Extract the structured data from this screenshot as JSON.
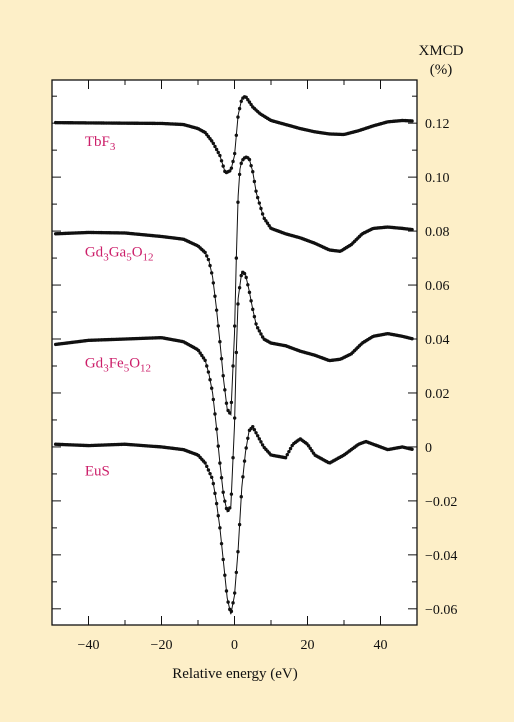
{
  "chart_data": {
    "type": "line",
    "title": "",
    "xlabel": "Relative energy (eV)",
    "ylabel": "XMCD",
    "ylabel_unit": "(%)",
    "xlim": [
      -50,
      50
    ],
    "ylim": [
      -0.066,
      0.136
    ],
    "x_ticks": [
      -40,
      -20,
      0,
      20,
      40
    ],
    "x_tick_labels": [
      "−40",
      "−20",
      "0",
      "20",
      "40"
    ],
    "y_ticks": [
      0.12,
      0.1,
      0.08,
      0.06,
      0.04,
      0.02,
      0,
      -0.02,
      -0.04,
      -0.06
    ],
    "y_tick_labels": [
      "0.12",
      "0.10",
      "0.08",
      "0.06",
      "0.04",
      "0.02",
      "0",
      "−0.02",
      "−0.04",
      "−0.06"
    ],
    "y_axis_side": "right",
    "grid": false,
    "series": [
      {
        "label_parts": [
          [
            "TbF",
            ""
          ],
          [
            "3",
            "sub"
          ]
        ],
        "label_x": -41,
        "label_y": 0.1115,
        "x": [
          -49,
          -40,
          -30,
          -20,
          -14,
          -10,
          -8,
          -6,
          -4,
          -2.5,
          -1,
          0,
          1,
          2,
          3,
          4,
          5,
          7,
          10,
          14,
          18,
          22,
          26,
          30,
          34,
          38,
          42,
          46,
          49
        ],
        "y": [
          0.1202,
          0.1201,
          0.12,
          0.1199,
          0.1195,
          0.118,
          0.1165,
          0.113,
          0.108,
          0.1015,
          0.1025,
          0.108,
          0.123,
          0.129,
          0.13,
          0.128,
          0.126,
          0.1235,
          0.121,
          0.1195,
          0.118,
          0.1168,
          0.116,
          0.1158,
          0.1172,
          0.119,
          0.1205,
          0.121,
          0.1208
        ]
      },
      {
        "label_parts": [
          [
            "Gd",
            ""
          ],
          [
            "3",
            "sub"
          ],
          [
            "Ga",
            ""
          ],
          [
            "5",
            "sub"
          ],
          [
            "O",
            ""
          ],
          [
            "12",
            "sub"
          ]
        ],
        "label_x": -41,
        "label_y": 0.0705,
        "x": [
          -49,
          -40,
          -30,
          -20,
          -14,
          -10,
          -8,
          -7,
          -6,
          -5,
          -4,
          -3,
          -2,
          -1,
          0,
          0.5,
          1,
          1.5,
          2,
          3,
          4,
          5,
          6,
          8,
          10,
          14,
          18,
          22,
          26,
          29,
          32,
          35,
          38,
          42,
          46,
          49
        ],
        "y": [
          0.079,
          0.0795,
          0.0793,
          0.078,
          0.077,
          0.0745,
          0.072,
          0.069,
          0.063,
          0.052,
          0.039,
          0.025,
          0.014,
          0.012,
          0.042,
          0.07,
          0.093,
          0.103,
          0.106,
          0.1075,
          0.107,
          0.102,
          0.094,
          0.085,
          0.081,
          0.079,
          0.0775,
          0.0755,
          0.073,
          0.0725,
          0.075,
          0.079,
          0.081,
          0.0815,
          0.081,
          0.0805
        ]
      },
      {
        "label_parts": [
          [
            "Gd",
            ""
          ],
          [
            "3",
            "sub"
          ],
          [
            "Fe",
            ""
          ],
          [
            "5",
            "sub"
          ],
          [
            "O",
            ""
          ],
          [
            "12",
            "sub"
          ]
        ],
        "label_x": -41,
        "label_y": 0.0295,
        "x": [
          -49,
          -40,
          -30,
          -20,
          -14,
          -10,
          -8,
          -7,
          -6,
          -5,
          -4,
          -3,
          -2,
          -1,
          0,
          0.5,
          1,
          2,
          3,
          4,
          5,
          6,
          8,
          10,
          14,
          18,
          22,
          26,
          29,
          32,
          35,
          38,
          42,
          46,
          49
        ],
        "y": [
          0.038,
          0.0395,
          0.04,
          0.0405,
          0.039,
          0.036,
          0.032,
          0.027,
          0.02,
          0.008,
          -0.006,
          -0.018,
          -0.024,
          -0.022,
          0.008,
          0.035,
          0.055,
          0.065,
          0.064,
          0.058,
          0.051,
          0.045,
          0.04,
          0.0385,
          0.0375,
          0.0355,
          0.034,
          0.032,
          0.0325,
          0.0345,
          0.0385,
          0.041,
          0.042,
          0.041,
          0.04
        ]
      },
      {
        "label_parts": [
          [
            "EuS",
            ""
          ]
        ],
        "label_x": -41,
        "label_y": -0.0105,
        "x": [
          -49,
          -40,
          -30,
          -20,
          -14,
          -10,
          -8,
          -6,
          -5,
          -4,
          -3,
          -2,
          -1,
          0,
          1,
          2,
          3,
          4,
          5,
          6,
          8,
          10,
          14,
          16,
          18,
          20,
          22,
          26,
          30,
          34,
          36,
          38,
          42,
          46,
          49
        ],
        "y": [
          0.001,
          0.0005,
          0.001,
          0.0,
          -0.001,
          -0.003,
          -0.006,
          -0.012,
          -0.02,
          -0.03,
          -0.043,
          -0.056,
          -0.062,
          -0.055,
          -0.038,
          -0.015,
          -0.002,
          0.006,
          0.0075,
          0.005,
          0.0,
          -0.003,
          -0.004,
          0.001,
          0.003,
          0.001,
          -0.003,
          -0.006,
          -0.003,
          0.001,
          0.002,
          0.001,
          -0.001,
          0.0,
          -0.001
        ]
      }
    ],
    "colors": {
      "background": "#fdefc8",
      "plot": "#ffffff",
      "line": "#111111",
      "label": "#cc1f6a"
    }
  }
}
